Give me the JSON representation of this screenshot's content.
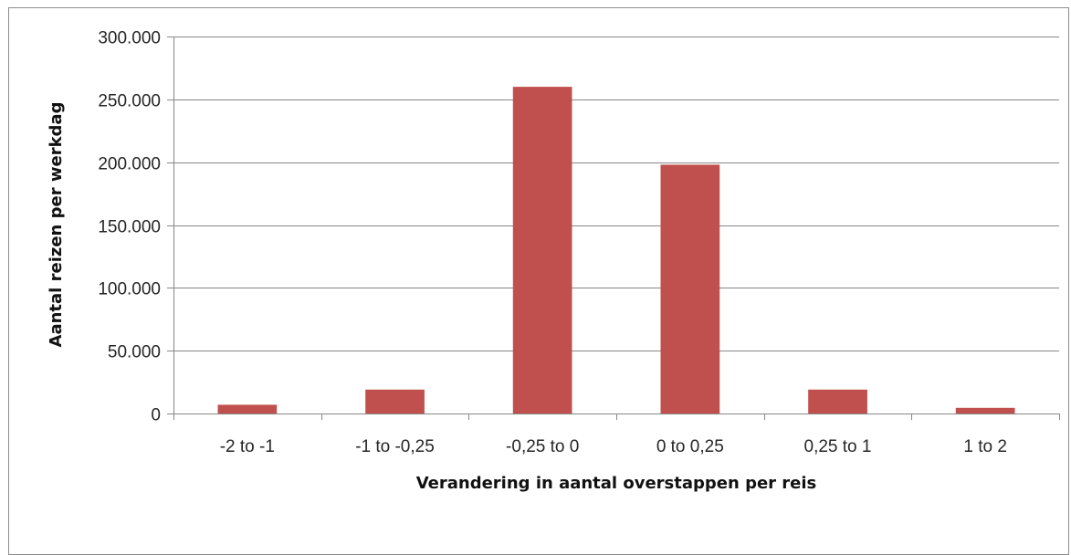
{
  "chart_data": {
    "type": "bar",
    "title": "",
    "xlabel": "Verandering in aantal overstappen per reis",
    "ylabel": "Aantal reizen per werkdag",
    "categories": [
      "-2 to -1",
      "-1 to -0,25",
      "-0,25 to 0",
      "0 to 0,25",
      "0,25 to 1",
      "1 to 2"
    ],
    "values": [
      7000,
      19000,
      260000,
      198000,
      19000,
      4500
    ],
    "ylim": [
      0,
      300000
    ],
    "yticks": [
      0,
      50000,
      100000,
      150000,
      200000,
      250000,
      300000
    ],
    "ytick_labels": [
      "0",
      "50.000",
      "100.000",
      "150.000",
      "200.000",
      "250.000",
      "300.000"
    ],
    "grid": true,
    "legend": "none",
    "colors": {
      "bar": "#c0504d",
      "grid": "#878787",
      "axis": "#878787"
    }
  }
}
